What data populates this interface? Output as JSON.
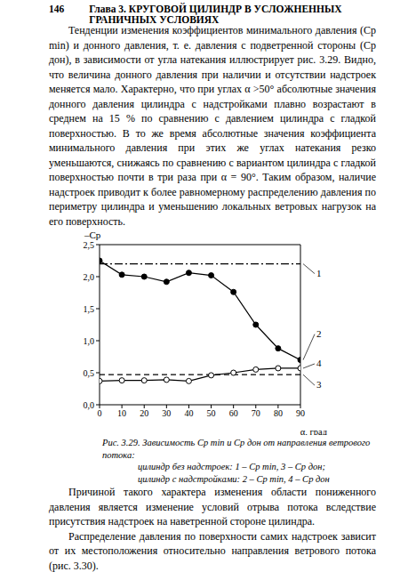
{
  "header": {
    "page": "146",
    "title": "Глава 3. КРУГОВОЙ ЦИЛИНДР В УСЛОЖНЕННЫХ ГРАНИЧНЫХ УСЛОВИЯХ"
  },
  "paragraphs_before": [
    "Тенденции изменения коэффициентов минимального давления (Cp min) и донного давления, т. е. давления с подветренной стороны (Cp дон), в зависимости от угла натекания иллюстрирует рис. 3.29. Видно, что величина донного давления при наличии и отсутствии надстроек меняется мало. Характерно, что при углах α >50° абсолютные значения донного давления цилиндра с надстройками плавно возрастают в среднем на 15 % по сравнению с давлением цилиндра с гладкой поверхностью. В то же время абсолютные значения коэффициента минимального давления при этих же углах натекания резко уменьшаются, снижаясь по сравнению с вариантом цилиндра с гладкой поверхностью почти в три раза при α = 90°. Таким образом, наличие надстроек приводит к более равномерному распределению давления по периметру цилиндра и уменьшению локальных ветровых нагрузок на его поверхность."
  ],
  "chart_data": {
    "type": "line",
    "x_label": "α, град",
    "y_label": "–Cp",
    "x": [
      0,
      10,
      20,
      30,
      40,
      50,
      60,
      70,
      80,
      90
    ],
    "series": [
      {
        "name": "1",
        "color": "#000000",
        "line_style": "dash_dot",
        "marker": "none",
        "values": [
          2.2,
          2.2,
          2.2,
          2.2,
          2.2,
          2.2,
          2.2,
          2.2,
          2.2,
          2.2
        ]
      },
      {
        "name": "2",
        "color": "#000000",
        "line_style": "solid",
        "marker": "filled_circle",
        "values": [
          2.25,
          2.03,
          2.0,
          1.92,
          2.06,
          2.02,
          1.76,
          1.25,
          0.88,
          0.7
        ]
      },
      {
        "name": "3",
        "color": "#000000",
        "line_style": "dashed",
        "marker": "none",
        "values": [
          0.47,
          0.47,
          0.47,
          0.47,
          0.47,
          0.47,
          0.47,
          0.47,
          0.47,
          0.47
        ]
      },
      {
        "name": "4",
        "color": "#000000",
        "line_style": "solid",
        "marker": "open_circle",
        "values": [
          0.37,
          0.38,
          0.38,
          0.39,
          0.37,
          0.46,
          0.5,
          0.55,
          0.57,
          0.57
        ]
      }
    ],
    "xlim": [
      0,
      90
    ],
    "xticks": [
      0,
      10,
      20,
      30,
      40,
      50,
      60,
      70,
      80,
      90
    ],
    "ylim": [
      0,
      2.5
    ],
    "yticks": [
      {
        "value": 0,
        "label": "0,0"
      },
      {
        "value": 0.5,
        "label": "0,5"
      },
      {
        "value": 1,
        "label": "1,0"
      },
      {
        "value": 1.5,
        "label": "1,5"
      },
      {
        "value": 2,
        "label": "2,0"
      },
      {
        "value": 2.5,
        "label": "2,5"
      }
    ],
    "grid": false
  },
  "caption": {
    "title": "Рис. 3.29. Зависимость Cp min и Cp дон от направления ветрового потока:",
    "lines": [
      "цилиндр без надстроек: 1 – Cp min, 3 – Cp дон;",
      "цилиндр с надстройками: 2 – Cp min, 4 – Cp дон"
    ]
  },
  "paragraphs_after": [
    "Причиной такого характера изменения области пониженного давления является изменение условий отрыва потока вследствие присутствия надстроек на наветренной стороне цилиндра.",
    "Распределение давления по поверхности самих надстроек зависит от их местоположения относительно направления ветрового потока (рис. 3.30)."
  ]
}
